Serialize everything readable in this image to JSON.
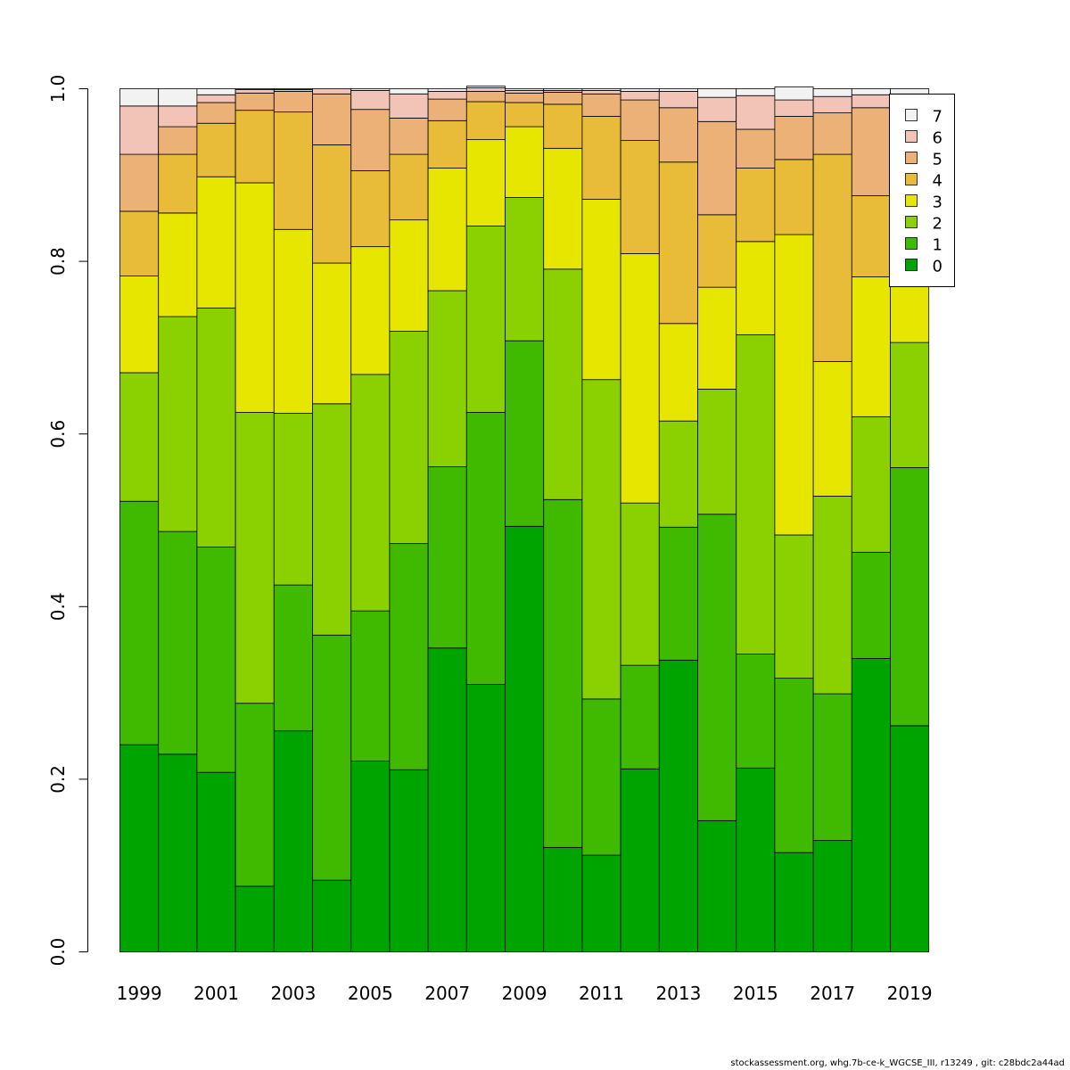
{
  "chart_data": {
    "type": "bar",
    "stacked": true,
    "x": [
      1999,
      2000,
      2001,
      2002,
      2003,
      2004,
      2005,
      2006,
      2007,
      2008,
      2009,
      2010,
      2011,
      2012,
      2013,
      2014,
      2015,
      2016,
      2017,
      2018,
      2019
    ],
    "x_tick_labels": [
      "1999",
      "2001",
      "2003",
      "2005",
      "2007",
      "2009",
      "2011",
      "2013",
      "2015",
      "2017",
      "2019"
    ],
    "y_tick_labels": [
      "0.0",
      "0.2",
      "0.4",
      "0.6",
      "0.8",
      "1.0"
    ],
    "ylim": [
      0,
      1
    ],
    "legend_position": "top-right",
    "series": [
      {
        "name": "0",
        "color": "#00a400",
        "values": [
          0.24,
          0.229,
          0.208,
          0.076,
          0.256,
          0.083,
          0.221,
          0.211,
          0.352,
          0.31,
          0.493,
          0.121,
          0.112,
          0.212,
          0.338,
          0.152,
          0.213,
          0.115,
          0.129,
          0.34,
          0.262
        ]
      },
      {
        "name": "1",
        "color": "#3fba00",
        "values": [
          0.282,
          0.258,
          0.261,
          0.212,
          0.169,
          0.284,
          0.174,
          0.262,
          0.21,
          0.315,
          0.215,
          0.403,
          0.181,
          0.12,
          0.154,
          0.355,
          0.132,
          0.202,
          0.17,
          0.123,
          0.299
        ]
      },
      {
        "name": "2",
        "color": "#8bd000",
        "values": [
          0.149,
          0.249,
          0.277,
          0.337,
          0.199,
          0.268,
          0.274,
          0.246,
          0.204,
          0.216,
          0.166,
          0.267,
          0.37,
          0.188,
          0.123,
          0.145,
          0.37,
          0.166,
          0.229,
          0.157,
          0.145
        ]
      },
      {
        "name": "3",
        "color": "#e6e600",
        "values": [
          0.112,
          0.12,
          0.152,
          0.266,
          0.213,
          0.163,
          0.148,
          0.129,
          0.142,
          0.1,
          0.082,
          0.14,
          0.209,
          0.289,
          0.113,
          0.118,
          0.108,
          0.348,
          0.156,
          0.162,
          0.07
        ]
      },
      {
        "name": "4",
        "color": "#e8bc38",
        "values": [
          0.075,
          0.068,
          0.062,
          0.084,
          0.136,
          0.137,
          0.088,
          0.076,
          0.055,
          0.044,
          0.028,
          0.051,
          0.096,
          0.131,
          0.187,
          0.084,
          0.085,
          0.087,
          0.24,
          0.094,
          0.12
        ]
      },
      {
        "name": "5",
        "color": "#ecb176",
        "values": [
          0.066,
          0.032,
          0.024,
          0.02,
          0.024,
          0.059,
          0.071,
          0.042,
          0.025,
          0.012,
          0.011,
          0.014,
          0.026,
          0.047,
          0.063,
          0.108,
          0.045,
          0.05,
          0.048,
          0.102,
          0.068
        ]
      },
      {
        "name": "6",
        "color": "#f2c4b8",
        "values": [
          0.056,
          0.024,
          0.009,
          0.004,
          0.002,
          0.006,
          0.022,
          0.028,
          0.009,
          0.004,
          0.003,
          0.002,
          0.004,
          0.01,
          0.019,
          0.028,
          0.039,
          0.019,
          0.019,
          0.015,
          0.03
        ]
      },
      {
        "name": "7",
        "color": "#f2f2f2",
        "values": [
          0.02,
          0.02,
          0.007,
          0.001,
          0.001,
          0.0,
          0.002,
          0.006,
          0.003,
          0.002,
          0.002,
          0.002,
          0.002,
          0.003,
          0.003,
          0.01,
          0.008,
          0.015,
          0.009,
          0.007,
          0.006
        ]
      }
    ]
  },
  "footer": "stockassessment.org, whg.7b-ce-k_WGCSE_III, r13249 , git: c28bdc2a44ad"
}
